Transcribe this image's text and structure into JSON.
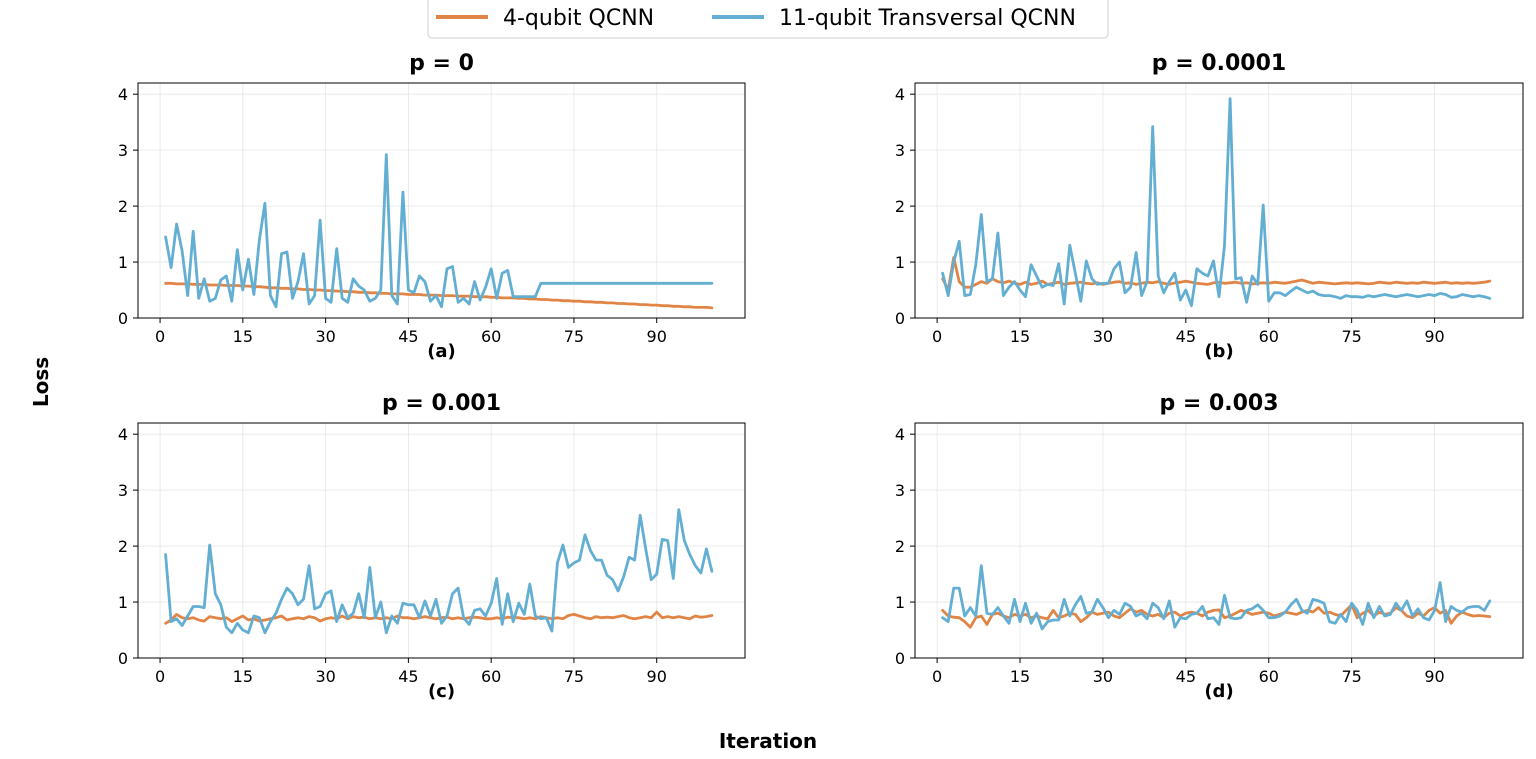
{
  "figure": {
    "ylabel": "Loss",
    "xlabel": "Iteration",
    "colors": {
      "orange": "#E08545",
      "blue": "#63AED3",
      "grid": "#E6E6E6"
    }
  },
  "legend": {
    "items": [
      {
        "label": "4-qubit QCNN",
        "color": "#E08545"
      },
      {
        "label": "11-qubit Transversal QCNN",
        "color": "#63AED3"
      }
    ],
    "placement": "top-center"
  },
  "chart_data": [
    {
      "type": "line",
      "title": "p = 0",
      "panel_label": "(a)",
      "xlabel": "Iteration",
      "ylabel": "Loss",
      "xlim": [
        -4,
        106
      ],
      "ylim": [
        0,
        4.2
      ],
      "xticks": [
        0,
        15,
        30,
        45,
        60,
        75,
        90
      ],
      "yticks": [
        0,
        1,
        2,
        3,
        4
      ],
      "grid": true,
      "series": [
        {
          "name": "4-qubit QCNN",
          "color": "#E08545",
          "x_start": 1,
          "values": [
            0.62,
            0.62,
            0.61,
            0.61,
            0.61,
            0.6,
            0.6,
            0.6,
            0.59,
            0.59,
            0.59,
            0.58,
            0.58,
            0.58,
            0.57,
            0.57,
            0.56,
            0.56,
            0.55,
            0.54,
            0.54,
            0.53,
            0.53,
            0.52,
            0.52,
            0.51,
            0.51,
            0.5,
            0.5,
            0.49,
            0.49,
            0.48,
            0.48,
            0.47,
            0.47,
            0.46,
            0.46,
            0.45,
            0.45,
            0.44,
            0.44,
            0.43,
            0.43,
            0.43,
            0.42,
            0.42,
            0.42,
            0.41,
            0.41,
            0.41,
            0.4,
            0.4,
            0.4,
            0.39,
            0.39,
            0.39,
            0.38,
            0.38,
            0.38,
            0.37,
            0.37,
            0.36,
            0.36,
            0.36,
            0.35,
            0.35,
            0.34,
            0.34,
            0.33,
            0.33,
            0.32,
            0.32,
            0.31,
            0.31,
            0.3,
            0.3,
            0.29,
            0.29,
            0.28,
            0.28,
            0.27,
            0.27,
            0.26,
            0.26,
            0.25,
            0.25,
            0.24,
            0.24,
            0.23,
            0.23,
            0.22,
            0.22,
            0.21,
            0.21,
            0.2,
            0.2,
            0.19,
            0.19,
            0.19,
            0.18
          ]
        },
        {
          "name": "11-qubit Transversal QCNN",
          "color": "#63AED3",
          "x_start": 1,
          "values": [
            1.45,
            0.9,
            1.68,
            1.2,
            0.4,
            1.55,
            0.35,
            0.7,
            0.3,
            0.35,
            0.68,
            0.75,
            0.3,
            1.22,
            0.5,
            1.05,
            0.42,
            1.4,
            2.05,
            0.4,
            0.2,
            1.15,
            1.18,
            0.35,
            0.65,
            1.15,
            0.25,
            0.4,
            1.75,
            0.35,
            0.28,
            1.24,
            0.35,
            0.28,
            0.7,
            0.57,
            0.5,
            0.3,
            0.35,
            0.5,
            2.92,
            0.4,
            0.25,
            2.25,
            0.5,
            0.45,
            0.75,
            0.65,
            0.3,
            0.4,
            0.2,
            0.88,
            0.92,
            0.28,
            0.35,
            0.25,
            0.65,
            0.32,
            0.55,
            0.88,
            0.35,
            0.8,
            0.85,
            0.38,
            0.38,
            0.38,
            0.38,
            0.38,
            0.62,
            0.62,
            0.62,
            0.62,
            0.62,
            0.62,
            0.62,
            0.62,
            0.62,
            0.62,
            0.62,
            0.62,
            0.62,
            0.62,
            0.62,
            0.62,
            0.62,
            0.62,
            0.62,
            0.62,
            0.62,
            0.62,
            0.62,
            0.62,
            0.62,
            0.62,
            0.62,
            0.62,
            0.62,
            0.62,
            0.62,
            0.62
          ]
        }
      ]
    },
    {
      "type": "line",
      "title": "p = 0.0001",
      "panel_label": "(b)",
      "xlabel": "Iteration",
      "ylabel": "Loss",
      "xlim": [
        -4,
        106
      ],
      "ylim": [
        0,
        4.2
      ],
      "xticks": [
        0,
        15,
        30,
        45,
        60,
        75,
        90
      ],
      "yticks": [
        0,
        1,
        2,
        3,
        4
      ],
      "grid": true,
      "series": [
        {
          "name": "4-qubit QCNN",
          "color": "#E08545",
          "x_start": 1,
          "values": [
            0.7,
            0.5,
            1.08,
            0.65,
            0.55,
            0.55,
            0.6,
            0.65,
            0.62,
            0.7,
            0.65,
            0.63,
            0.66,
            0.62,
            0.6,
            0.64,
            0.6,
            0.62,
            0.66,
            0.6,
            0.62,
            0.64,
            0.6,
            0.62,
            0.63,
            0.64,
            0.62,
            0.61,
            0.63,
            0.6,
            0.62,
            0.64,
            0.65,
            0.62,
            0.63,
            0.6,
            0.62,
            0.64,
            0.63,
            0.65,
            0.62,
            0.6,
            0.63,
            0.64,
            0.66,
            0.64,
            0.62,
            0.61,
            0.6,
            0.63,
            0.64,
            0.62,
            0.63,
            0.64,
            0.62,
            0.63,
            0.61,
            0.62,
            0.63,
            0.62,
            0.64,
            0.63,
            0.62,
            0.64,
            0.66,
            0.68,
            0.65,
            0.62,
            0.64,
            0.63,
            0.62,
            0.61,
            0.62,
            0.63,
            0.62,
            0.63,
            0.62,
            0.61,
            0.62,
            0.64,
            0.63,
            0.62,
            0.64,
            0.63,
            0.62,
            0.63,
            0.62,
            0.64,
            0.63,
            0.62,
            0.63,
            0.64,
            0.62,
            0.63,
            0.62,
            0.63,
            0.62,
            0.63,
            0.64,
            0.66
          ]
        },
        {
          "name": "11-qubit Transversal QCNN",
          "color": "#63AED3",
          "x_start": 1,
          "values": [
            0.8,
            0.4,
            1.0,
            1.37,
            0.4,
            0.42,
            0.95,
            1.85,
            0.65,
            0.7,
            1.52,
            0.4,
            0.55,
            0.65,
            0.5,
            0.38,
            0.95,
            0.75,
            0.55,
            0.6,
            0.58,
            0.97,
            0.25,
            1.3,
            0.8,
            0.3,
            1.02,
            0.7,
            0.6,
            0.62,
            0.62,
            0.88,
            1.0,
            0.45,
            0.55,
            1.17,
            0.4,
            0.65,
            3.42,
            0.75,
            0.45,
            0.65,
            0.8,
            0.32,
            0.5,
            0.22,
            0.88,
            0.8,
            0.75,
            1.02,
            0.38,
            1.3,
            3.92,
            0.7,
            0.72,
            0.28,
            0.75,
            0.6,
            2.02,
            0.3,
            0.45,
            0.45,
            0.4,
            0.48,
            0.55,
            0.5,
            0.45,
            0.48,
            0.42,
            0.4,
            0.4,
            0.38,
            0.35,
            0.4,
            0.38,
            0.38,
            0.37,
            0.4,
            0.38,
            0.4,
            0.42,
            0.4,
            0.38,
            0.4,
            0.42,
            0.4,
            0.38,
            0.4,
            0.42,
            0.4,
            0.44,
            0.42,
            0.37,
            0.38,
            0.42,
            0.4,
            0.38,
            0.4,
            0.38,
            0.35
          ]
        }
      ]
    },
    {
      "type": "line",
      "title": "p = 0.001",
      "panel_label": "(c)",
      "xlabel": "Iteration",
      "ylabel": "Loss",
      "xlim": [
        -4,
        106
      ],
      "ylim": [
        0,
        4.2
      ],
      "xticks": [
        0,
        15,
        30,
        45,
        60,
        75,
        90
      ],
      "yticks": [
        0,
        1,
        2,
        3,
        4
      ],
      "grid": true,
      "series": [
        {
          "name": "4-qubit QCNN",
          "color": "#E08545",
          "x_start": 1,
          "values": [
            0.62,
            0.68,
            0.78,
            0.72,
            0.7,
            0.72,
            0.68,
            0.66,
            0.74,
            0.72,
            0.7,
            0.72,
            0.65,
            0.7,
            0.75,
            0.68,
            0.7,
            0.66,
            0.68,
            0.7,
            0.72,
            0.75,
            0.68,
            0.7,
            0.72,
            0.7,
            0.74,
            0.72,
            0.66,
            0.7,
            0.72,
            0.7,
            0.75,
            0.7,
            0.74,
            0.72,
            0.73,
            0.7,
            0.72,
            0.7,
            0.72,
            0.7,
            0.75,
            0.72,
            0.72,
            0.7,
            0.72,
            0.74,
            0.72,
            0.7,
            0.72,
            0.73,
            0.7,
            0.72,
            0.7,
            0.72,
            0.73,
            0.72,
            0.7,
            0.7,
            0.72,
            0.7,
            0.73,
            0.72,
            0.72,
            0.7,
            0.72,
            0.7,
            0.74,
            0.72,
            0.7,
            0.72,
            0.7,
            0.76,
            0.78,
            0.75,
            0.72,
            0.7,
            0.74,
            0.72,
            0.73,
            0.72,
            0.74,
            0.76,
            0.72,
            0.7,
            0.72,
            0.74,
            0.72,
            0.82,
            0.72,
            0.74,
            0.72,
            0.74,
            0.72,
            0.7,
            0.75,
            0.73,
            0.74,
            0.76
          ]
        },
        {
          "name": "11-qubit Transversal QCNN",
          "color": "#63AED3",
          "x_start": 1,
          "values": [
            1.85,
            0.65,
            0.7,
            0.58,
            0.75,
            0.92,
            0.92,
            0.9,
            2.02,
            1.15,
            0.95,
            0.55,
            0.45,
            0.62,
            0.5,
            0.45,
            0.75,
            0.72,
            0.45,
            0.65,
            0.8,
            1.05,
            1.25,
            1.15,
            0.95,
            1.05,
            1.65,
            0.88,
            0.92,
            1.15,
            1.2,
            0.65,
            0.95,
            0.72,
            0.8,
            1.15,
            0.72,
            1.62,
            0.72,
            1.0,
            0.45,
            0.75,
            0.62,
            0.98,
            0.95,
            0.95,
            0.72,
            1.02,
            0.75,
            1.05,
            0.62,
            0.75,
            1.15,
            1.25,
            0.72,
            0.6,
            0.85,
            0.88,
            0.75,
            0.98,
            1.42,
            0.6,
            1.15,
            0.65,
            0.98,
            0.78,
            1.32,
            0.75,
            0.7,
            0.72,
            0.48,
            1.7,
            2.02,
            1.62,
            1.7,
            1.75,
            2.2,
            1.92,
            1.75,
            1.75,
            1.48,
            1.4,
            1.2,
            1.45,
            1.8,
            1.75,
            2.55,
            1.95,
            1.4,
            1.5,
            2.12,
            2.1,
            1.42,
            2.65,
            2.1,
            1.85,
            1.65,
            1.52,
            1.95,
            1.55
          ]
        }
      ]
    },
    {
      "type": "line",
      "title": "p = 0.003",
      "panel_label": "(d)",
      "xlabel": "Iteration",
      "ylabel": "Loss",
      "xlim": [
        -4,
        106
      ],
      "ylim": [
        0,
        4.2
      ],
      "xticks": [
        0,
        15,
        30,
        45,
        60,
        75,
        90
      ],
      "yticks": [
        0,
        1,
        2,
        3,
        4
      ],
      "grid": true,
      "series": [
        {
          "name": "4-qubit QCNN",
          "color": "#E08545",
          "x_start": 1,
          "values": [
            0.85,
            0.75,
            0.73,
            0.72,
            0.65,
            0.55,
            0.72,
            0.75,
            0.6,
            0.78,
            0.8,
            0.75,
            0.72,
            0.78,
            0.75,
            0.78,
            0.72,
            0.75,
            0.72,
            0.7,
            0.85,
            0.72,
            0.75,
            0.8,
            0.78,
            0.65,
            0.72,
            0.82,
            0.78,
            0.8,
            0.82,
            0.75,
            0.72,
            0.8,
            0.88,
            0.82,
            0.85,
            0.78,
            0.75,
            0.78,
            0.72,
            0.8,
            0.82,
            0.75,
            0.8,
            0.82,
            0.8,
            0.75,
            0.82,
            0.85,
            0.86,
            0.72,
            0.75,
            0.8,
            0.85,
            0.82,
            0.78,
            0.8,
            0.82,
            0.8,
            0.75,
            0.78,
            0.82,
            0.8,
            0.78,
            0.82,
            0.85,
            0.82,
            0.9,
            0.8,
            0.82,
            0.78,
            0.75,
            0.85,
            0.95,
            0.72,
            0.8,
            0.85,
            0.75,
            0.82,
            0.78,
            0.8,
            0.9,
            0.85,
            0.75,
            0.72,
            0.8,
            0.75,
            0.85,
            0.9,
            0.8,
            0.85,
            0.62,
            0.75,
            0.82,
            0.78,
            0.75,
            0.76,
            0.75,
            0.74
          ]
        },
        {
          "name": "11-qubit Transversal QCNN",
          "color": "#63AED3",
          "x_start": 1,
          "values": [
            0.72,
            0.65,
            1.25,
            1.25,
            0.75,
            0.9,
            0.75,
            1.65,
            0.8,
            0.78,
            0.9,
            0.75,
            0.62,
            1.05,
            0.65,
            0.98,
            0.62,
            0.8,
            0.52,
            0.65,
            0.68,
            0.68,
            1.05,
            0.75,
            0.95,
            1.1,
            0.8,
            0.82,
            1.05,
            0.9,
            0.72,
            0.85,
            0.78,
            0.98,
            0.92,
            0.75,
            0.8,
            0.7,
            0.98,
            0.9,
            0.7,
            1.02,
            0.55,
            0.72,
            0.7,
            0.78,
            0.8,
            0.92,
            0.7,
            0.72,
            0.6,
            1.12,
            0.72,
            0.7,
            0.72,
            0.85,
            0.88,
            0.95,
            0.85,
            0.72,
            0.72,
            0.75,
            0.82,
            0.95,
            1.05,
            0.85,
            0.8,
            1.05,
            1.02,
            0.98,
            0.65,
            0.62,
            0.78,
            0.65,
            0.98,
            0.85,
            0.6,
            0.98,
            0.72,
            0.92,
            0.75,
            0.78,
            0.98,
            0.85,
            1.02,
            0.75,
            0.88,
            0.72,
            0.68,
            0.85,
            1.35,
            0.65,
            0.92,
            0.85,
            0.82,
            0.9,
            0.92,
            0.92,
            0.85,
            1.02
          ]
        }
      ]
    }
  ]
}
